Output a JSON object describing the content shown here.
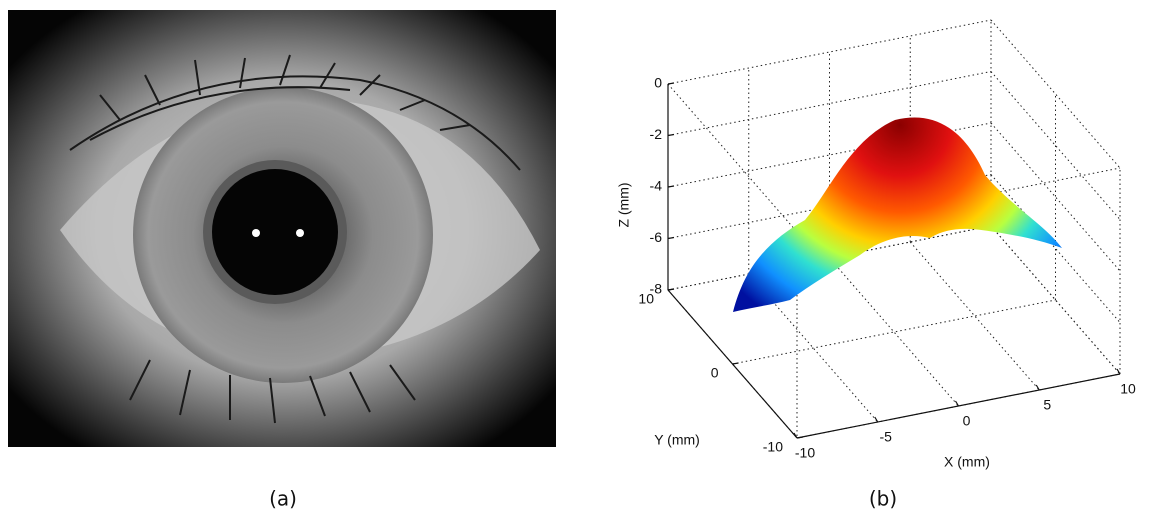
{
  "panels": [
    {
      "label": "(a)"
    },
    {
      "label": "(b)",
      "plot": {
        "x_axis": {
          "label": "X (mm)",
          "ticks": [
            -10,
            -5,
            0,
            5,
            10
          ]
        },
        "y_axis": {
          "label": "Y (mm)",
          "ticks": [
            10,
            0,
            -10
          ]
        },
        "z_axis": {
          "label": "Z (mm)",
          "ticks": [
            0,
            -2,
            -4,
            -6,
            -8
          ]
        }
      }
    }
  ]
}
